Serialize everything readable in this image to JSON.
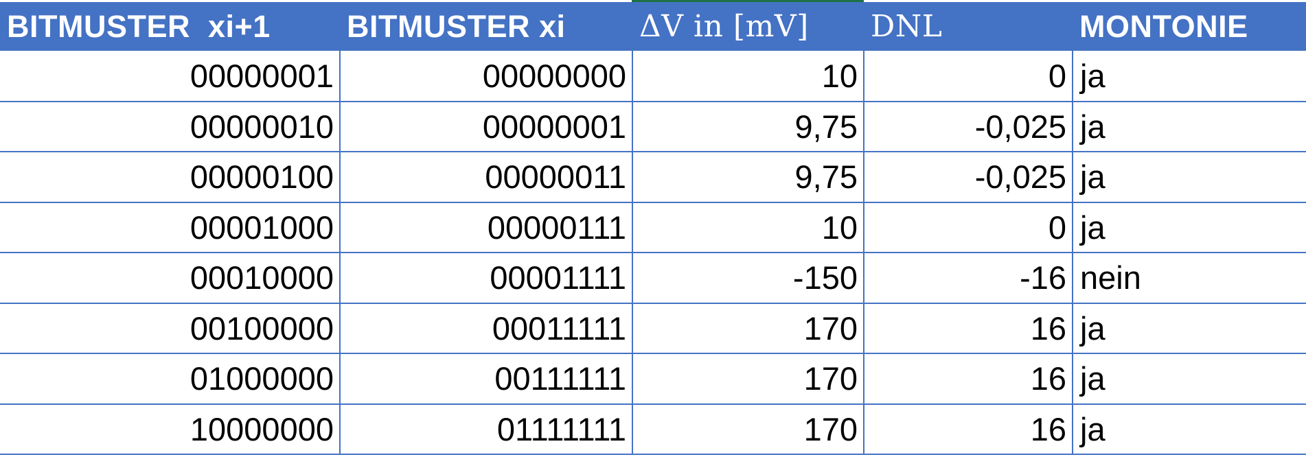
{
  "table": {
    "headers": [
      "BITMUSTER  xi+1",
      "BITMUSTER xi",
      "ΔV in [mV]",
      "DNL",
      "MONTONIE"
    ],
    "rows": [
      [
        "00000001",
        "00000000",
        "10",
        "0",
        "ja"
      ],
      [
        "00000010",
        "00000001",
        "9,75",
        "-0,025",
        "ja"
      ],
      [
        "00000100",
        "00000011",
        "9,75",
        "-0,025",
        "ja"
      ],
      [
        "00001000",
        "00000111",
        "10",
        "0",
        "ja"
      ],
      [
        "00010000",
        "00001111",
        "-150",
        "-16",
        "nein"
      ],
      [
        "00100000",
        "00011111",
        "170",
        "16",
        "ja"
      ],
      [
        "01000000",
        "00111111",
        "170",
        "16",
        "ja"
      ],
      [
        "10000000",
        "01111111",
        "170",
        "16",
        "ja"
      ]
    ]
  },
  "colors": {
    "header_bg": "#4472c4",
    "header_text": "#ffffff",
    "grid_line": "#4472c4",
    "accent": "#1e7145"
  }
}
